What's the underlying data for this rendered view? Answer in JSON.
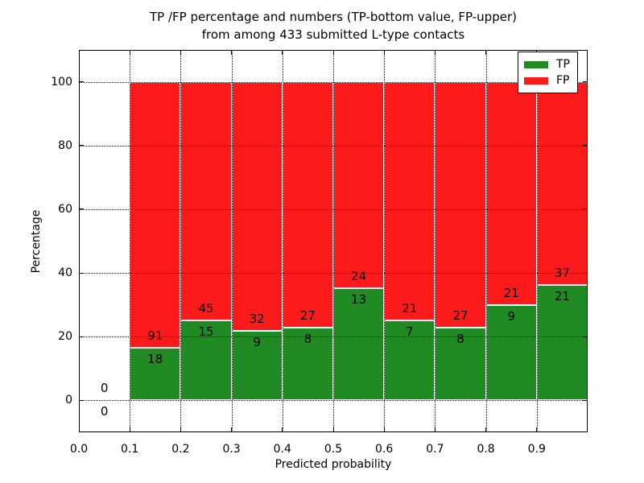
{
  "chart_data": {
    "type": "bar",
    "stacked": true,
    "normalized_to_percent": true,
    "title_line1": "TP /FP percentage and numbers (TP-bottom value, FP-upper)",
    "title_line2": "from among 433 submitted L-type contacts",
    "xlabel": "Predicted probability",
    "ylabel": "Percentage",
    "xlim": [
      0.0,
      1.0
    ],
    "ylim": [
      -10,
      110
    ],
    "x_tick_labels": [
      "0.0",
      "0.1",
      "0.2",
      "0.3",
      "0.4",
      "0.5",
      "0.6",
      "0.7",
      "0.8",
      "0.9"
    ],
    "y_tick_labels": [
      "0",
      "20",
      "40",
      "60",
      "80",
      "100"
    ],
    "grid": "dotted",
    "bin_width": 0.1,
    "total_contacts": 433,
    "bins": [
      {
        "x_start": 0.0,
        "tp": 0,
        "fp": 0
      },
      {
        "x_start": 0.1,
        "tp": 18,
        "fp": 91
      },
      {
        "x_start": 0.2,
        "tp": 15,
        "fp": 45
      },
      {
        "x_start": 0.3,
        "tp": 9,
        "fp": 32
      },
      {
        "x_start": 0.4,
        "tp": 8,
        "fp": 27
      },
      {
        "x_start": 0.5,
        "tp": 13,
        "fp": 24
      },
      {
        "x_start": 0.6,
        "tp": 7,
        "fp": 21
      },
      {
        "x_start": 0.7,
        "tp": 8,
        "fp": 27
      },
      {
        "x_start": 0.8,
        "tp": 9,
        "fp": 21
      },
      {
        "x_start": 0.9,
        "tp": 21,
        "fp": 37
      }
    ],
    "legend": {
      "position": "upper right",
      "entries": [
        {
          "label": "TP",
          "color": "#208b22"
        },
        {
          "label": "FP",
          "color": "#fd1a1a"
        }
      ]
    },
    "colors": {
      "tp": "#208b22",
      "fp": "#fd1a1a",
      "grid": "#111111",
      "frame": "#000000",
      "background": "#ffffff"
    }
  }
}
